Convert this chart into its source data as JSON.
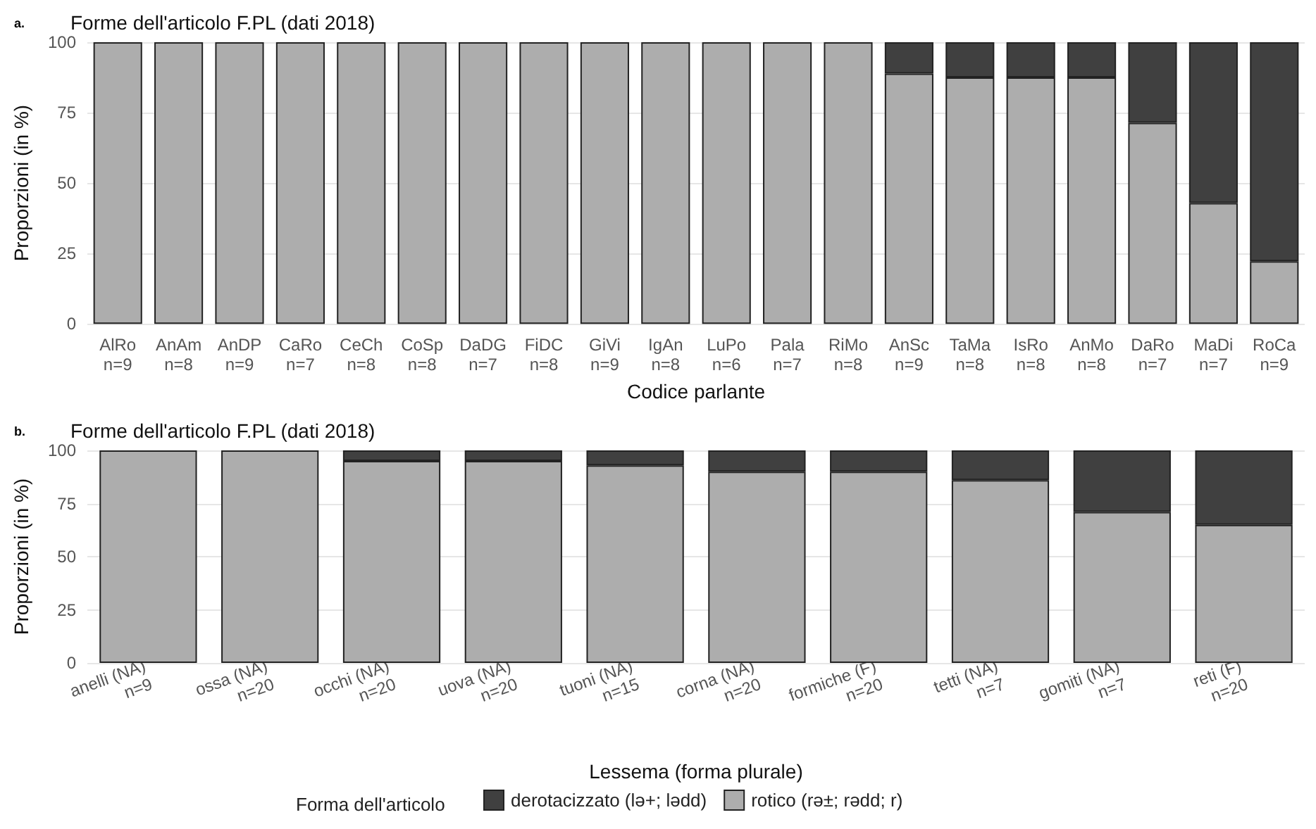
{
  "chart_data": [
    {
      "type": "bar",
      "title": "Forme dell'articolo F.PL (dati 2018)",
      "annotations": [
        "a."
      ],
      "xlabel": "Codice parlante",
      "ylabel": "Proporzioni (in %)",
      "stacked": true,
      "grid": "y",
      "legend": false,
      "ylim": [
        0,
        100
      ],
      "yticks": [
        0,
        25,
        50,
        75,
        100
      ],
      "categories": [
        "AlRo\nn=9",
        "AnAm\nn=8",
        "AnDP\nn=9",
        "CaRo\nn=7",
        "CeCh\nn=8",
        "CoSp\nn=8",
        "DaDG\nn=7",
        "FiDC\nn=8",
        "GiVi\nn=9",
        "IgAn\nn=8",
        "LuPo\nn=6",
        "Pala\nn=7",
        "RiMo\nn=8",
        "AnSc\nn=9",
        "TaMa\nn=8",
        "IsRo\nn=8",
        "AnMo\nn=8",
        "DaRo\nn=7",
        "MaDi\nn=7",
        "RoCa\nn=9"
      ],
      "series": [
        {
          "color": "#adadad",
          "values": [
            100,
            100,
            100,
            100,
            100,
            100,
            100,
            100,
            100,
            100,
            100,
            100,
            100,
            88.9,
            87.5,
            87.5,
            87.5,
            71.4,
            42.9,
            22.2
          ]
        },
        {
          "color": "#404040",
          "values": [
            null,
            null,
            null,
            null,
            null,
            null,
            null,
            null,
            null,
            null,
            null,
            null,
            null,
            11.1,
            12.5,
            12.5,
            12.5,
            28.6,
            57.1,
            77.8
          ]
        }
      ]
    },
    {
      "type": "bar",
      "title": "Forme dell'articolo F.PL (dati 2018)",
      "annotations": [
        "b."
      ],
      "xlabel": "Lessema (forma plurale)",
      "ylabel": "Proporzioni (in %)",
      "stacked": true,
      "grid": "y",
      "legend": "bottom",
      "legend_title": "Forma dell'articolo",
      "ylim": [
        0,
        100
      ],
      "yticks": [
        0,
        25,
        50,
        75,
        100
      ],
      "categories": [
        "anelli (NA)\nn=9",
        "ossa (NA)\nn=20",
        "occhi (NA)\nn=20",
        "uova (NA)\nn=20",
        "tuoni (NA)\nn=15",
        "corna (NA)\nn=20",
        "formiche (F)\nn=20",
        "tetti (NA)\nn=7",
        "gomiti (NA)\nn=7",
        "reti (F)\nn=20"
      ],
      "series": [
        {
          "name": "rotico (rə±; rədd; r)",
          "color": "#adadad",
          "values": [
            100,
            100,
            95,
            95,
            93,
            90,
            90,
            86,
            71,
            65
          ]
        },
        {
          "name": "derotacizzato (lə+; lədd)",
          "color": "#404040",
          "values": [
            null,
            null,
            5,
            5,
            7,
            10,
            10,
            14,
            29,
            35
          ]
        }
      ]
    }
  ]
}
